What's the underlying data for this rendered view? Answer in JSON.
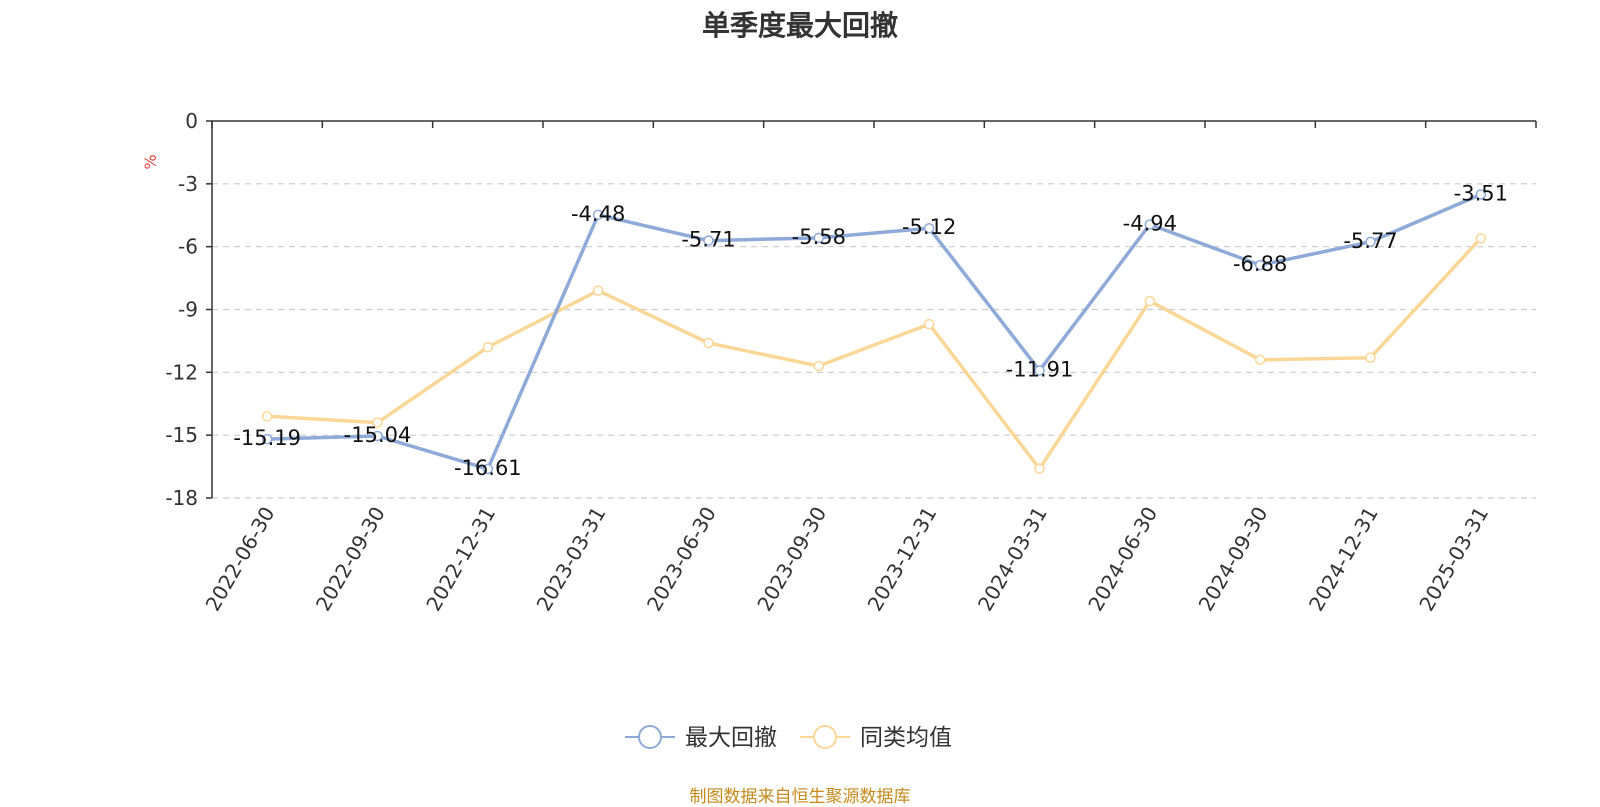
{
  "chart_data": {
    "type": "line",
    "title": "单季度最大回撤",
    "ylabel": "%",
    "x": [
      "2022-06-30",
      "2022-09-30",
      "2022-12-31",
      "2023-03-31",
      "2023-06-30",
      "2023-09-30",
      "2023-12-31",
      "2024-03-31",
      "2024-06-30",
      "2024-09-30",
      "2024-12-31",
      "2025-03-31"
    ],
    "ylim": [
      -18,
      0
    ],
    "yticks": [
      0,
      -3,
      -6,
      -9,
      -12,
      -15,
      -18
    ],
    "grid": true,
    "legend_position": "bottom",
    "series": [
      {
        "name": "最大回撤",
        "color": "#8eaad9",
        "show_labels": true,
        "values": [
          -15.19,
          -15.04,
          -16.61,
          -4.48,
          -5.71,
          -5.58,
          -5.12,
          -11.91,
          -4.94,
          -6.88,
          -5.77,
          -3.51
        ]
      },
      {
        "name": "同类均值",
        "color": "#fad797",
        "show_labels": false,
        "values": [
          -14.1,
          -14.4,
          -10.8,
          -8.1,
          -10.6,
          -11.7,
          -9.7,
          -16.6,
          -8.6,
          -11.4,
          -11.3,
          -5.6
        ]
      }
    ]
  },
  "footer": {
    "source": "制图数据来自恒生聚源数据库"
  }
}
